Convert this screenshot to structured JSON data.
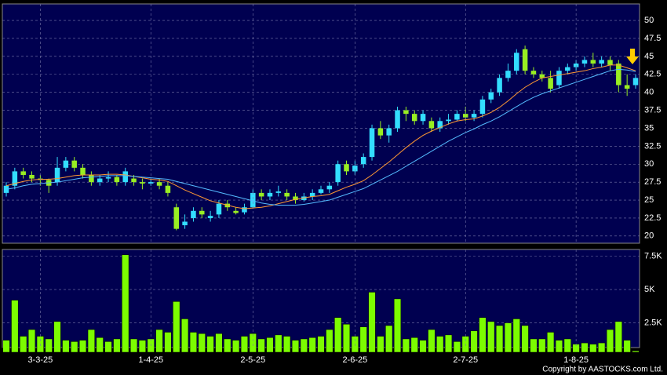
{
  "chart_data": [
    {
      "type": "candlestick",
      "up_color": "#33ddff",
      "down_color": "#99ee22",
      "grid": true,
      "ylim": [
        19,
        52.3
      ],
      "yticks": [
        20,
        22.5,
        25,
        27.5,
        30,
        32.5,
        35,
        37.5,
        40,
        42.5,
        45,
        47.5,
        50
      ],
      "open": [
        26,
        27,
        29,
        28.5,
        28,
        27.8,
        27.5,
        29.5,
        30.5,
        29.5,
        28.5,
        27.5,
        28,
        28.2,
        27.5,
        28,
        27.5,
        27.3,
        27.5,
        27,
        24,
        21.5,
        22.5,
        23.5,
        22.5,
        23,
        24.5,
        23.5,
        23.3,
        24,
        26,
        25.5,
        26,
        26,
        25.5,
        25,
        25.5,
        26,
        26.5,
        27.5,
        30,
        29,
        30,
        31,
        35,
        34,
        35,
        37.5,
        37,
        36,
        36,
        35,
        36,
        36.2,
        37,
        36.5,
        37,
        39,
        40,
        42,
        43,
        46,
        43,
        42.5,
        42,
        41,
        43,
        43.5,
        44,
        44.5,
        44,
        44.5,
        44,
        41,
        41
      ],
      "high": [
        27.5,
        29.5,
        29.5,
        29,
        28.5,
        28,
        31,
        31,
        31,
        30,
        29,
        28.5,
        29,
        28.5,
        29.5,
        28.5,
        28,
        28,
        28,
        27.5,
        24.5,
        23,
        24,
        24,
        23.5,
        25,
        25,
        24,
        24.5,
        26.5,
        26.5,
        26.5,
        27,
        26.5,
        26,
        26,
        26.5,
        27,
        27.5,
        30.5,
        30.5,
        30.5,
        31.5,
        35.5,
        36,
        35.5,
        38,
        38,
        37.5,
        37.5,
        36.5,
        36.5,
        37,
        37.5,
        38,
        37.5,
        39.5,
        40.5,
        42.5,
        44,
        46,
        46.5,
        43.5,
        43,
        43,
        43.5,
        44,
        44.5,
        45,
        45.5,
        45,
        45,
        44.5,
        42.5,
        42.5
      ],
      "low": [
        25.5,
        26.5,
        28,
        27.5,
        27,
        26,
        27,
        29,
        29,
        28,
        27,
        27,
        27.5,
        27,
        27,
        27,
        26.5,
        27,
        26.5,
        25.5,
        20.8,
        21,
        22,
        22.5,
        22,
        22.5,
        23.5,
        23,
        23,
        23.8,
        25,
        25,
        25.5,
        25,
        24.5,
        24.8,
        25,
        25.8,
        26,
        27,
        28.5,
        28.5,
        29.5,
        30.5,
        33.5,
        33,
        34.5,
        36,
        35.5,
        35.5,
        34.5,
        34.5,
        35.5,
        36,
        36,
        36,
        36.5,
        38.5,
        39.5,
        41.5,
        42.5,
        42.5,
        42,
        41.5,
        40,
        40.5,
        42.5,
        43,
        43.5,
        43.5,
        43.5,
        43,
        40,
        39.5,
        40.5
      ],
      "close": [
        27,
        29,
        28.5,
        28,
        27.8,
        27,
        29.5,
        30.5,
        29.5,
        28.5,
        27.5,
        28,
        28.2,
        27.5,
        29,
        27.5,
        27.3,
        27.5,
        27,
        26,
        21,
        22,
        23.5,
        23,
        22.8,
        24.5,
        24,
        23.2,
        24,
        26,
        25.5,
        26,
        26.2,
        25.5,
        25,
        25.5,
        26,
        26.5,
        27,
        30,
        29,
        29.8,
        31,
        35,
        34,
        35,
        37.5,
        37,
        36,
        37,
        35,
        36,
        36.2,
        37,
        36.5,
        37,
        39,
        40,
        42,
        43,
        45.5,
        43,
        42.5,
        42,
        40.5,
        43,
        43.5,
        44,
        44.5,
        44,
        44.5,
        43.8,
        41,
        40.5,
        42
      ],
      "series": [
        {
          "color": "#ff9933",
          "values": [
            27,
            27.3,
            27.6,
            27.8,
            27.9,
            27.9,
            28,
            28.2,
            28.4,
            28.5,
            28.5,
            28.5,
            28.6,
            28.6,
            28.5,
            28.3,
            28.1,
            27.9,
            27.8,
            27.6,
            27,
            26.4,
            25.9,
            25.4,
            24.9,
            24.6,
            24.3,
            24,
            23.8,
            23.9,
            24,
            24.2,
            24.5,
            24.8,
            25.1,
            25.3,
            25.5,
            25.6,
            25.8,
            26.3,
            26.8,
            27.2,
            27.7,
            28.5,
            29.4,
            30.3,
            31.3,
            32.3,
            33.2,
            34,
            34.6,
            35.1,
            35.6,
            36,
            36.2,
            36.3,
            36.7,
            37.2,
            37.9,
            38.8,
            39.8,
            40.7,
            41.4,
            42,
            42.2,
            42.4,
            42.6,
            42.8,
            43,
            43.3,
            43.5,
            43.8,
            43.8,
            43.4,
            43
          ]
        },
        {
          "color": "#55bbff",
          "values": [
            26.5,
            26.7,
            27,
            27.2,
            27.3,
            27.4,
            27.5,
            27.7,
            27.9,
            28.1,
            28.2,
            28.3,
            28.4,
            28.4,
            28.4,
            28.3,
            28.2,
            28.1,
            28,
            27.9,
            27.6,
            27.3,
            27,
            26.7,
            26.4,
            26.1,
            25.8,
            25.5,
            25.2,
            24.9,
            24.6,
            24.4,
            24.3,
            24.3,
            24.3,
            24.4,
            24.6,
            24.8,
            25,
            25.4,
            25.8,
            26.2,
            26.6,
            27.2,
            27.8,
            28.4,
            29,
            29.7,
            30.4,
            31.1,
            31.8,
            32.5,
            33.2,
            33.8,
            34.4,
            34.9,
            35.5,
            36,
            36.6,
            37.3,
            38,
            38.7,
            39.3,
            39.8,
            40.2,
            40.6,
            41,
            41.4,
            41.8,
            42.2,
            42.6,
            43,
            43.2,
            43.1,
            42.9
          ]
        }
      ]
    },
    {
      "type": "bar",
      "color": "#7cfc00",
      "grid": true,
      "ylim": [
        300,
        8000
      ],
      "yticks": [
        {
          "value": 2500,
          "label": "2.5K"
        },
        {
          "value": 5000,
          "label": "5K"
        },
        {
          "value": 7500,
          "label": "7.5K"
        }
      ],
      "categories": [
        null,
        null,
        null,
        null,
        "3-3-25",
        null,
        null,
        null,
        null,
        null,
        null,
        null,
        null,
        null,
        null,
        null,
        null,
        "1-4-25",
        null,
        null,
        null,
        null,
        null,
        null,
        null,
        null,
        null,
        null,
        null,
        "2-5-25",
        null,
        null,
        null,
        null,
        null,
        null,
        null,
        null,
        null,
        null,
        null,
        "2-6-25",
        null,
        null,
        null,
        null,
        null,
        null,
        null,
        null,
        null,
        null,
        null,
        null,
        "2-7-25",
        null,
        null,
        null,
        null,
        null,
        null,
        null,
        null,
        null,
        null,
        null,
        null,
        "1-8-25",
        null,
        null,
        null,
        null,
        null,
        null,
        null
      ],
      "values": [
        1200,
        4200,
        1500,
        2000,
        1500,
        1300,
        2600,
        1200,
        1100,
        1200,
        2000,
        1400,
        1100,
        1300,
        7600,
        1300,
        1200,
        1300,
        2000,
        1800,
        4100,
        2800,
        1800,
        1700,
        1500,
        1700,
        1300,
        1200,
        1500,
        1700,
        1300,
        1400,
        1600,
        1500,
        1200,
        1300,
        1400,
        1500,
        2000,
        2900,
        2400,
        1500,
        2200,
        4800,
        1500,
        2300,
        4300,
        1300,
        1400,
        1200,
        2000,
        1500,
        1600,
        1100,
        1500,
        1900,
        2900,
        2600,
        2300,
        2500,
        2800,
        2300,
        1300,
        1300,
        1800,
        1200,
        1300,
        900,
        1000,
        900,
        1000,
        2000,
        2600,
        1200,
        400
      ]
    }
  ],
  "copyright": "Copyright by AASTOCKS.com Ltd."
}
